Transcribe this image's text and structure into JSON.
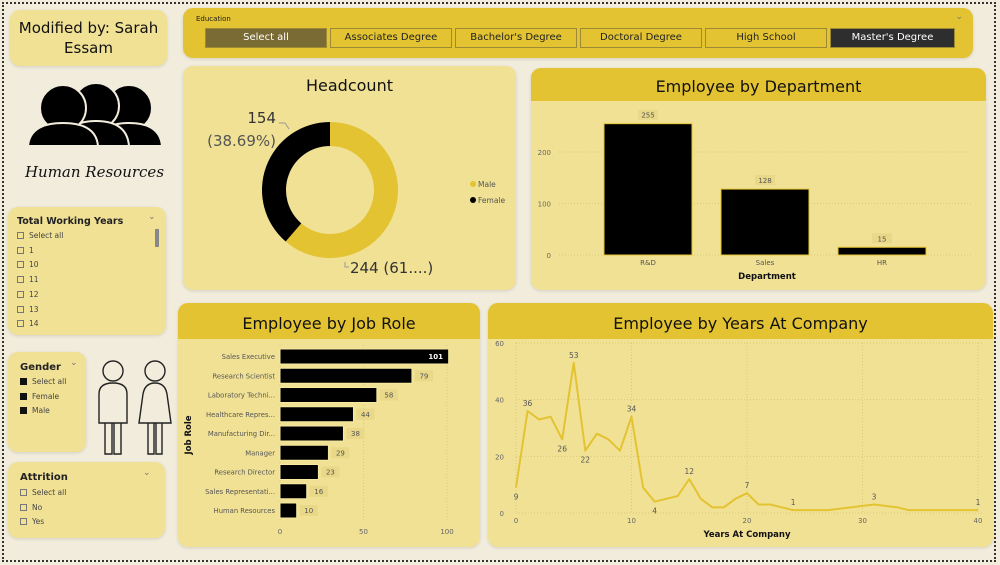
{
  "title_card": {
    "text": "Modified by: Sarah Essam"
  },
  "logo": {
    "text": "Human Resources",
    "icon": "people-group-icon"
  },
  "education": {
    "label": "Education",
    "options": [
      {
        "label": "Select all",
        "state": "partial"
      },
      {
        "label": "Associates Degree",
        "state": "off"
      },
      {
        "label": "Bachelor's Degree",
        "state": "off"
      },
      {
        "label": "Doctoral Degree",
        "state": "off"
      },
      {
        "label": "High School",
        "state": "off"
      },
      {
        "label": "Master's Degree",
        "state": "selected"
      }
    ]
  },
  "total_working_years": {
    "label": "Total Working Years",
    "items": [
      "Select all",
      "1",
      "10",
      "11",
      "12",
      "13",
      "14"
    ]
  },
  "gender": {
    "label": "Gender",
    "items": [
      "Select all",
      "Female",
      "Male"
    ]
  },
  "attrition": {
    "label": "Attrition",
    "items": [
      "Select all",
      "No",
      "Yes"
    ]
  },
  "colors": {
    "accent": "#e3c331",
    "card": "#f1e195",
    "dark": "#000000"
  },
  "chart_data": [
    {
      "type": "pie",
      "variant": "donut",
      "title": "Headcount",
      "slices": [
        {
          "name": "Male",
          "value": 244,
          "label": "244 (61....)",
          "color": "#e3c331"
        },
        {
          "name": "Female",
          "value": 154,
          "label_value": "154",
          "label_pct": "(38.69%)",
          "color": "#000000"
        }
      ],
      "legend": [
        "Male",
        "Female"
      ],
      "legend_position": "right"
    },
    {
      "type": "bar",
      "title": "Employee by Department",
      "xlabel": "Department",
      "ylabel": "",
      "categories": [
        "R&D",
        "Sales",
        "HR"
      ],
      "values": [
        255,
        128,
        15
      ],
      "ylim": [
        0,
        300
      ],
      "yticks": [
        "0",
        "100",
        "200"
      ]
    },
    {
      "type": "bar",
      "orientation": "horizontal",
      "title": "Employee by Job Role",
      "ylabel": "Job Role",
      "xlabel": "",
      "categories": [
        "Sales Executive",
        "Research Scientist",
        "Laboratory Techni...",
        "Healthcare Repres...",
        "Manufacturing Dir...",
        "Manager",
        "Research Director",
        "Sales Representati...",
        "Human Resources"
      ],
      "values": [
        101,
        79,
        58,
        44,
        38,
        29,
        23,
        16,
        10
      ],
      "xlim": [
        0,
        100
      ],
      "xticks": [
        "0",
        "50",
        "100"
      ]
    },
    {
      "type": "line",
      "title": "Employee by Years At Company",
      "xlabel": "Years At Company",
      "ylabel": "",
      "x": [
        0,
        1,
        2,
        3,
        4,
        5,
        6,
        7,
        8,
        9,
        10,
        11,
        12,
        13,
        14,
        15,
        16,
        17,
        18,
        19,
        20,
        21,
        22,
        23,
        24,
        25,
        26,
        27,
        28,
        29,
        30,
        31,
        32,
        33,
        34,
        35,
        36,
        37,
        40
      ],
      "y": [
        9,
        36,
        33,
        34,
        26,
        53,
        22,
        28,
        26,
        22,
        34,
        9,
        4,
        5,
        6,
        12,
        5,
        2,
        2,
        5,
        7,
        3,
        3,
        2,
        1,
        1,
        1,
        1,
        1.5,
        2,
        2.5,
        3,
        2.5,
        2,
        1,
        1,
        1,
        1,
        1
      ],
      "labeled_points": [
        [
          0,
          "9"
        ],
        [
          1,
          "36"
        ],
        [
          4,
          "26"
        ],
        [
          5,
          "53"
        ],
        [
          6,
          "22"
        ],
        [
          10,
          "34"
        ],
        [
          12,
          "4"
        ],
        [
          15,
          "12"
        ],
        [
          20,
          "7"
        ],
        [
          24,
          "1"
        ],
        [
          31,
          "3"
        ],
        [
          40,
          "1"
        ]
      ],
      "xlim": [
        0,
        40
      ],
      "ylim": [
        0,
        60
      ],
      "xticks": [
        "0",
        "10",
        "20",
        "30",
        "40"
      ],
      "yticks": [
        "0",
        "20",
        "40",
        "60"
      ],
      "color": "#e3c331"
    }
  ]
}
